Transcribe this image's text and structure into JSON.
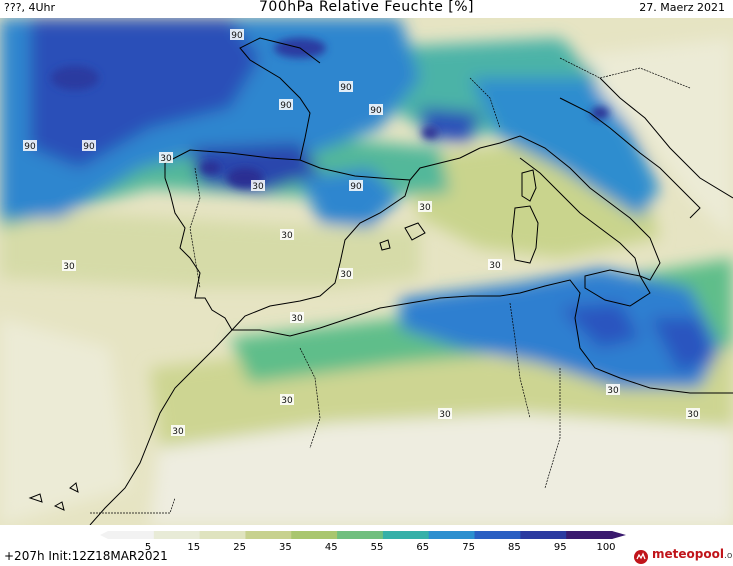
{
  "header": {
    "left_text": "???, 4Uhr",
    "title": "700hPa Relative Feuchte [%]",
    "date": "27. Maerz 2021"
  },
  "footer": {
    "forecast_info": "+207h  Init:12Z18MAR2021",
    "brand": "meteopool",
    "brand_suffix": ".org"
  },
  "legend": {
    "ticks": [
      "5",
      "15",
      "25",
      "35",
      "45",
      "55",
      "65",
      "75",
      "85",
      "95",
      "100"
    ],
    "colors": [
      "#f2f2f2",
      "#e8ebd7",
      "#dfe3bf",
      "#c7d18e",
      "#a9c66e",
      "#70bf7e",
      "#35b0a8",
      "#2c8fcf",
      "#2a5fc2",
      "#2b3aa0",
      "#3a1a6e"
    ]
  },
  "contour_labels": [
    {
      "text": "90"
    },
    {
      "text": "90"
    },
    {
      "text": "90"
    },
    {
      "text": "90"
    },
    {
      "text": "90"
    },
    {
      "text": "90"
    },
    {
      "text": "90"
    },
    {
      "text": "30"
    },
    {
      "text": "30"
    },
    {
      "text": "30"
    },
    {
      "text": "30"
    },
    {
      "text": "30"
    },
    {
      "text": "30"
    },
    {
      "text": "30"
    },
    {
      "text": "30"
    },
    {
      "text": "30"
    },
    {
      "text": "30"
    },
    {
      "text": "30"
    },
    {
      "text": "30"
    },
    {
      "text": "30"
    }
  ]
}
